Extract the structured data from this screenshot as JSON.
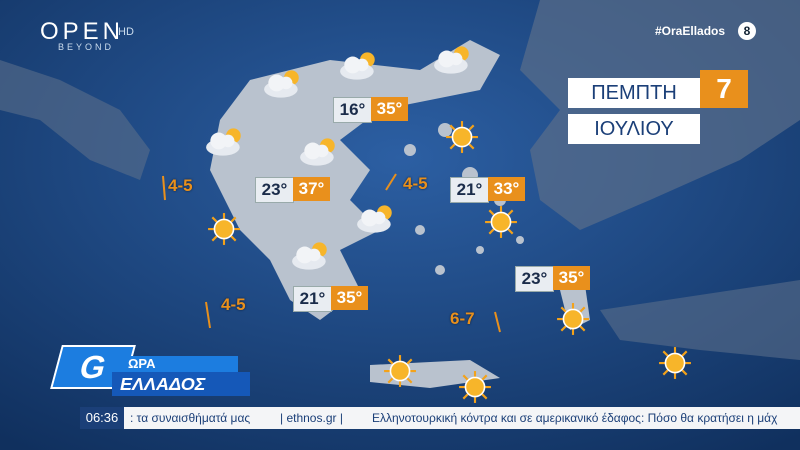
{
  "logo": {
    "brand": "OPEN",
    "sub": "BEYOND",
    "hd": "HD"
  },
  "hashtag": "#OraEllados",
  "channel": "8",
  "date": {
    "day": "ΠΕΜΠΤΗ",
    "number": "7",
    "month": "ΙΟΥΛΙΟΥ"
  },
  "cities": [
    {
      "min": "16°",
      "max": "35°"
    },
    {
      "min": "23°",
      "max": "37°"
    },
    {
      "min": "21°",
      "max": "33°"
    },
    {
      "min": "23°",
      "max": "35°"
    },
    {
      "min": "21°",
      "max": "35°"
    }
  ],
  "winds": [
    "4-5",
    "4-5",
    "4-5",
    "6-7"
  ],
  "show": {
    "line1": "ΩΡΑ",
    "line2": "ΕΛΛΑΔΟΣ"
  },
  "ticker": {
    "time": "06:36",
    "items": [
      ": τα συναισθήματά μας",
      "| ethnos.gr |",
      "Ελληνοτουρκική κόντρα και σε αμερικανικό έδαφος: Πόσο θα κρατήσει η μάχ"
    ]
  }
}
